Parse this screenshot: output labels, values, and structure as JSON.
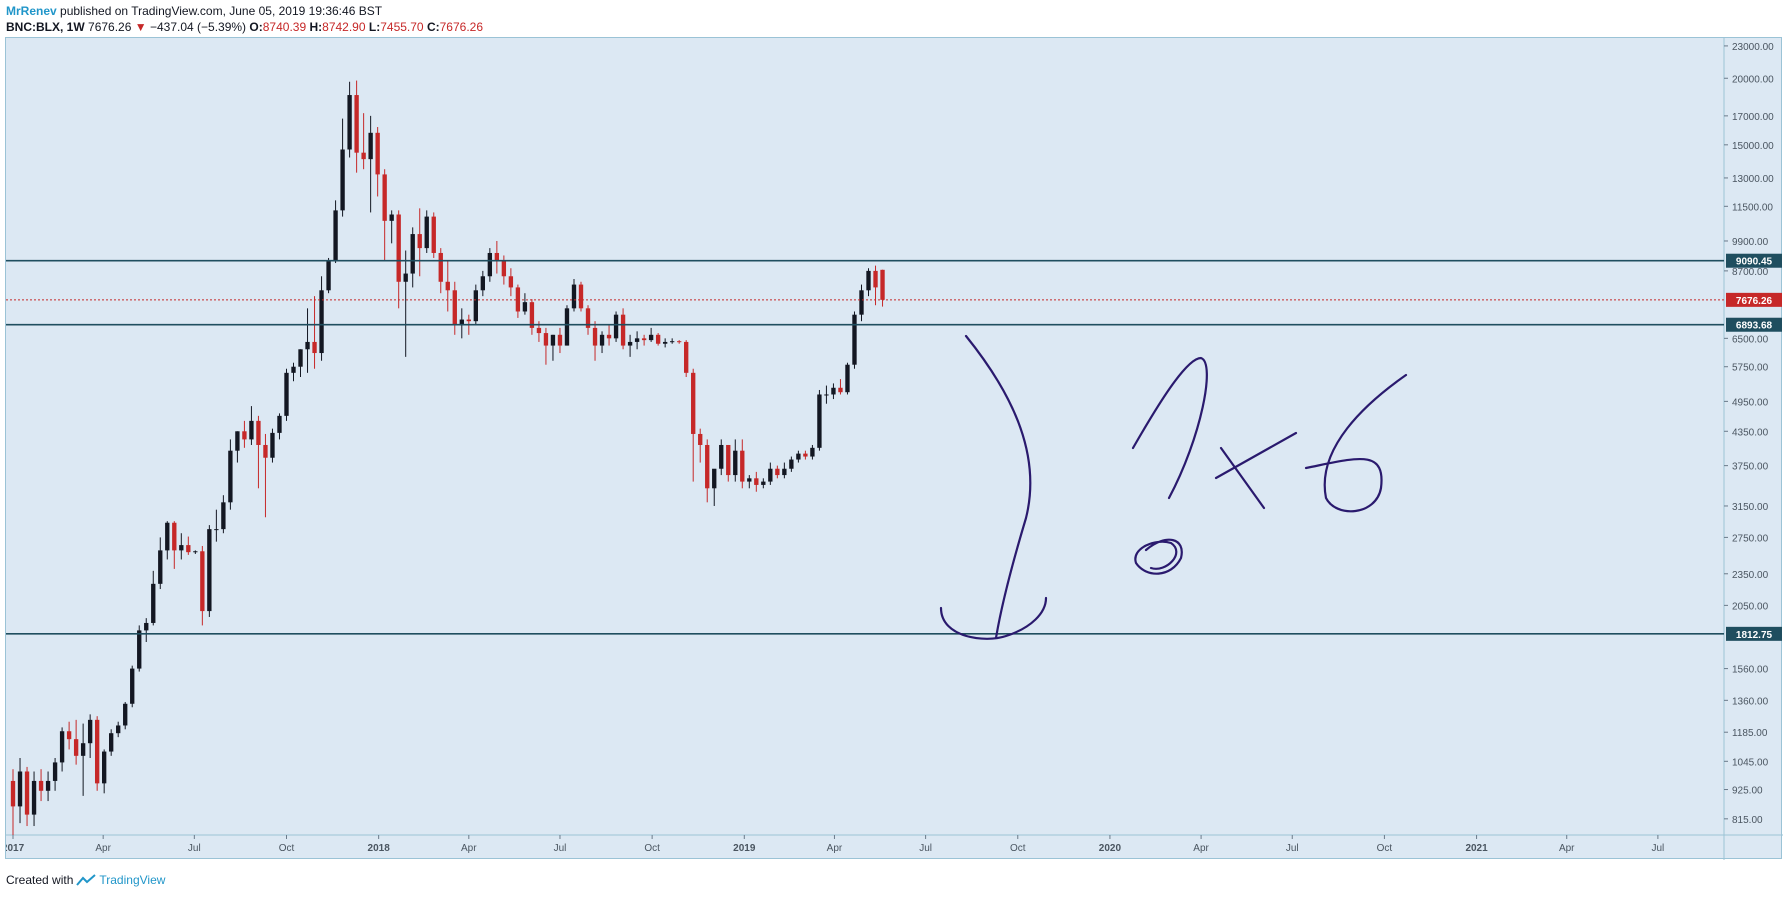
{
  "header": {
    "author": "MrRenev",
    "published_text": "published on TradingView.com, June 05, 2019 19:36:46 BST",
    "symbol": "BNC:BLX, 1W",
    "last": "7676.26",
    "change": "−437.04 (−5.39%)",
    "o_label": "O:",
    "o_value": "8740.39",
    "h_label": "H:",
    "h_value": "8742.90",
    "l_label": "L:",
    "l_value": "7455.70",
    "c_label": "C:",
    "c_value": "7676.26"
  },
  "footer": {
    "created_with": "Created with",
    "brand": "TradingView"
  },
  "colors": {
    "up": "#131722",
    "down": "#c62828",
    "background": "#dce8f3",
    "level_line": "#1f4e5f",
    "drawing": "#2a1a6e",
    "price_line": "#c62828"
  },
  "chart_data": {
    "type": "candlestick",
    "scale": "log",
    "ylim": [
      760,
      23800
    ],
    "xlim": [
      "2016-12-25",
      "2021-09-05"
    ],
    "y_ticks": [
      "23000.00",
      "20000.00",
      "17000.00",
      "15000.00",
      "13000.00",
      "11500.00",
      "9900.00",
      "8700.00",
      "6500.00",
      "5750.00",
      "4950.00",
      "4350.00",
      "3750.00",
      "3150.00",
      "2750.00",
      "2350.00",
      "2050.00",
      "1560.00",
      "1360.00",
      "1185.00",
      "1045.00",
      "925.00",
      "815.00"
    ],
    "x_ticks": [
      {
        "label": "2017",
        "date": "2017-01-01",
        "bold": true
      },
      {
        "label": "Apr",
        "date": "2017-04-01"
      },
      {
        "label": "Jul",
        "date": "2017-07-01"
      },
      {
        "label": "Oct",
        "date": "2017-10-01"
      },
      {
        "label": "2018",
        "date": "2018-01-01",
        "bold": true
      },
      {
        "label": "Apr",
        "date": "2018-04-01"
      },
      {
        "label": "Jul",
        "date": "2018-07-01"
      },
      {
        "label": "Oct",
        "date": "2018-10-01"
      },
      {
        "label": "2019",
        "date": "2019-01-01",
        "bold": true
      },
      {
        "label": "Apr",
        "date": "2019-04-01"
      },
      {
        "label": "Jul",
        "date": "2019-07-01"
      },
      {
        "label": "Oct",
        "date": "2019-10-01"
      },
      {
        "label": "2020",
        "date": "2020-01-01",
        "bold": true
      },
      {
        "label": "Apr",
        "date": "2020-04-01"
      },
      {
        "label": "Jul",
        "date": "2020-07-01"
      },
      {
        "label": "Oct",
        "date": "2020-10-01"
      },
      {
        "label": "2021",
        "date": "2021-01-01",
        "bold": true
      },
      {
        "label": "Apr",
        "date": "2021-04-01"
      },
      {
        "label": "Jul",
        "date": "2021-07-01"
      }
    ],
    "horizontal_levels": [
      {
        "value": 9090.45,
        "label": "9090.45"
      },
      {
        "value": 6893.68,
        "label": "6893.68"
      },
      {
        "value": 1812.75,
        "label": "1812.75"
      }
    ],
    "last_price": {
      "value": 7676.26,
      "label": "7676.26"
    },
    "candles": [
      [
        960,
        1010,
        760,
        860
      ],
      [
        860,
        1060,
        800,
        1000
      ],
      [
        1000,
        1020,
        790,
        830
      ],
      [
        830,
        1000,
        790,
        960
      ],
      [
        960,
        1010,
        880,
        920
      ],
      [
        920,
        1000,
        880,
        960
      ],
      [
        960,
        1060,
        920,
        1040
      ],
      [
        1040,
        1210,
        1000,
        1190
      ],
      [
        1190,
        1240,
        1100,
        1150
      ],
      [
        1150,
        1250,
        1030,
        1070
      ],
      [
        1070,
        1230,
        900,
        1130
      ],
      [
        1130,
        1280,
        1060,
        1250
      ],
      [
        1250,
        1270,
        920,
        950
      ],
      [
        950,
        1100,
        910,
        1090
      ],
      [
        1090,
        1200,
        1070,
        1180
      ],
      [
        1180,
        1240,
        1160,
        1220
      ],
      [
        1220,
        1350,
        1200,
        1340
      ],
      [
        1340,
        1580,
        1320,
        1560
      ],
      [
        1560,
        1880,
        1540,
        1840
      ],
      [
        1840,
        1940,
        1750,
        1900
      ],
      [
        1900,
        2380,
        1880,
        2250
      ],
      [
        2250,
        2750,
        2200,
        2600
      ],
      [
        2600,
        2950,
        2500,
        2930
      ],
      [
        2930,
        2950,
        2400,
        2600
      ],
      [
        2600,
        2800,
        2500,
        2660
      ],
      [
        2660,
        2760,
        2550,
        2580
      ],
      [
        2580,
        2600,
        2560,
        2590
      ],
      [
        2590,
        2650,
        1880,
        2000
      ],
      [
        2000,
        2900,
        1950,
        2850
      ],
      [
        2850,
        3100,
        2700,
        2850
      ],
      [
        2850,
        3300,
        2800,
        3200
      ],
      [
        3200,
        4200,
        3100,
        4000
      ],
      [
        4000,
        4350,
        3800,
        4350
      ],
      [
        4350,
        4550,
        4050,
        4200
      ],
      [
        4200,
        4850,
        4100,
        4550
      ],
      [
        4550,
        4650,
        3400,
        4100
      ],
      [
        4100,
        4300,
        3000,
        3880
      ],
      [
        3880,
        4400,
        3800,
        4320
      ],
      [
        4320,
        4700,
        4200,
        4650
      ],
      [
        4650,
        5700,
        4550,
        5600
      ],
      [
        5600,
        5850,
        5400,
        5750
      ],
      [
        5750,
        6200,
        5500,
        6200
      ],
      [
        6200,
        7400,
        5600,
        6400
      ],
      [
        6400,
        7800,
        5700,
        6100
      ],
      [
        6100,
        8500,
        5900,
        8000
      ],
      [
        8000,
        9200,
        7900,
        9100
      ],
      [
        9100,
        11800,
        9000,
        11300
      ],
      [
        11300,
        16800,
        11000,
        14700
      ],
      [
        14700,
        19700,
        14200,
        18600
      ],
      [
        18600,
        19800,
        13300,
        14500
      ],
      [
        14500,
        17200,
        13500,
        14100
      ],
      [
        14100,
        17000,
        11200,
        15800
      ],
      [
        15800,
        16200,
        12000,
        13200
      ],
      [
        13200,
        13500,
        9100,
        10800
      ],
      [
        10800,
        11300,
        9800,
        11100
      ],
      [
        11100,
        11300,
        7400,
        8300
      ],
      [
        8300,
        9500,
        6000,
        8600
      ],
      [
        8600,
        10500,
        8100,
        10200
      ],
      [
        10200,
        11400,
        8500,
        9600
      ],
      [
        9600,
        11300,
        9400,
        11000
      ],
      [
        11000,
        11200,
        9200,
        9400
      ],
      [
        9400,
        9600,
        7900,
        8300
      ],
      [
        8300,
        9100,
        7300,
        8000
      ],
      [
        8000,
        8300,
        6600,
        6900
      ],
      [
        6900,
        7400,
        6500,
        7050
      ],
      [
        7050,
        7200,
        6600,
        7000
      ],
      [
        7000,
        8200,
        6900,
        8000
      ],
      [
        8000,
        8700,
        7800,
        8500
      ],
      [
        8500,
        9600,
        8300,
        9400
      ],
      [
        9400,
        9900,
        8600,
        9100
      ],
      [
        9100,
        9300,
        8200,
        8500
      ],
      [
        8500,
        8800,
        7800,
        8100
      ],
      [
        8100,
        8200,
        7100,
        7300
      ],
      [
        7300,
        7900,
        7200,
        7600
      ],
      [
        7600,
        7700,
        6600,
        6800
      ],
      [
        6800,
        7000,
        6400,
        6650
      ],
      [
        6650,
        6800,
        5800,
        6300
      ],
      [
        6300,
        6600,
        5900,
        6600
      ],
      [
        6600,
        6800,
        6100,
        6300
      ],
      [
        6300,
        7500,
        6300,
        7400
      ],
      [
        7400,
        8400,
        7300,
        8200
      ],
      [
        8200,
        8300,
        7300,
        7400
      ],
      [
        7400,
        7500,
        6600,
        6800
      ],
      [
        6800,
        7000,
        5900,
        6300
      ],
      [
        6300,
        6700,
        6100,
        6600
      ],
      [
        6600,
        6900,
        6300,
        6500
      ],
      [
        6500,
        7300,
        6400,
        7200
      ],
      [
        7200,
        7400,
        6200,
        6300
      ],
      [
        6300,
        6600,
        6000,
        6400
      ],
      [
        6400,
        6700,
        6200,
        6500
      ],
      [
        6500,
        6600,
        6300,
        6450
      ],
      [
        6450,
        6800,
        6400,
        6600
      ],
      [
        6600,
        6650,
        6300,
        6350
      ],
      [
        6350,
        6500,
        6250,
        6400
      ],
      [
        6400,
        6500,
        6350,
        6420
      ],
      [
        6420,
        6450,
        6350,
        6400
      ],
      [
        6400,
        6450,
        5500,
        5600
      ],
      [
        5600,
        5700,
        3500,
        4300
      ],
      [
        4300,
        4400,
        3800,
        4100
      ],
      [
        4100,
        4200,
        3200,
        3400
      ],
      [
        3400,
        3600,
        3150,
        3700
      ],
      [
        3700,
        4200,
        3600,
        4100
      ],
      [
        4100,
        4100,
        3500,
        3600
      ],
      [
        3600,
        4200,
        3500,
        4000
      ],
      [
        4000,
        4200,
        3400,
        3500
      ],
      [
        3500,
        3600,
        3400,
        3550
      ],
      [
        3550,
        3650,
        3350,
        3450
      ],
      [
        3450,
        3550,
        3400,
        3500
      ],
      [
        3500,
        3800,
        3450,
        3700
      ],
      [
        3700,
        3750,
        3550,
        3600
      ],
      [
        3600,
        3800,
        3550,
        3700
      ],
      [
        3700,
        3900,
        3650,
        3850
      ],
      [
        3850,
        4000,
        3800,
        3950
      ],
      [
        3950,
        4000,
        3850,
        3900
      ],
      [
        3900,
        4100,
        3850,
        4050
      ],
      [
        4050,
        5200,
        4000,
        5100
      ],
      [
        5100,
        5300,
        4900,
        5100
      ],
      [
        5100,
        5350,
        5000,
        5250
      ],
      [
        5250,
        5450,
        5100,
        5150
      ],
      [
        5150,
        5850,
        5100,
        5800
      ],
      [
        5800,
        7300,
        5700,
        7200
      ],
      [
        7200,
        8200,
        7000,
        8000
      ],
      [
        8000,
        8800,
        7800,
        8700
      ],
      [
        8700,
        8900,
        7500,
        8100
      ],
      [
        8740.39,
        8742.9,
        7455.7,
        7676.26
      ]
    ],
    "first_candle_date": "2017-01-01"
  },
  "annotations": {
    "handwriting": "? x 6"
  }
}
